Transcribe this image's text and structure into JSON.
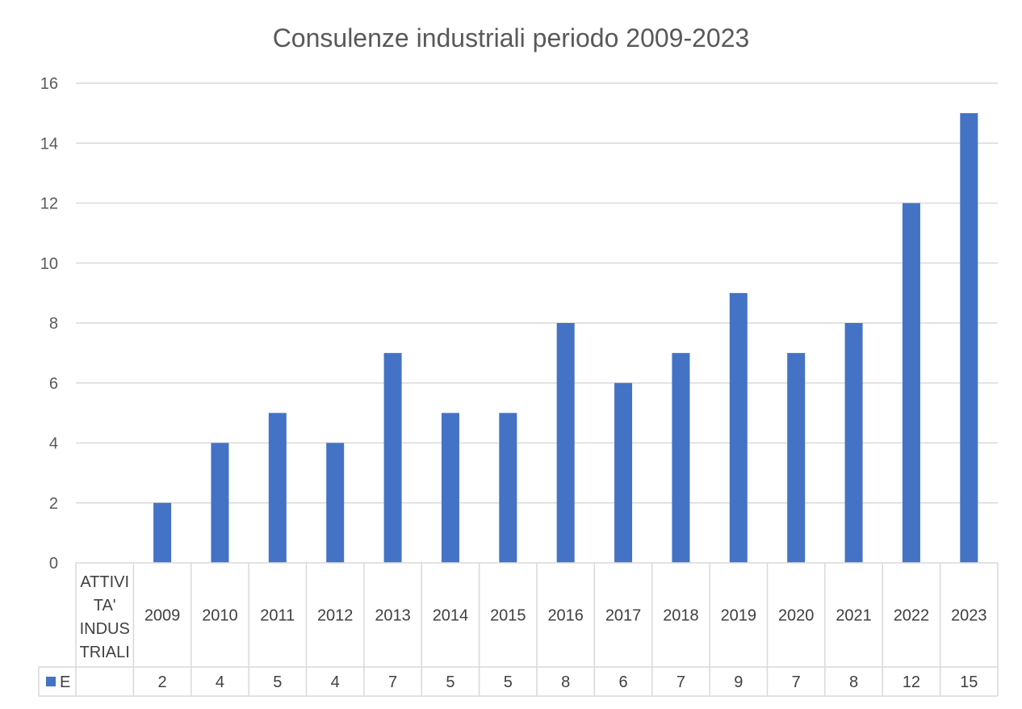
{
  "chart_data": {
    "type": "bar",
    "title": "Consulenze industriali periodo 2009-2023",
    "first_category_label": [
      "ATTIVI",
      "TA'",
      "INDUS",
      "TRIALI"
    ],
    "categories": [
      "2009",
      "2010",
      "2011",
      "2012",
      "2013",
      "2014",
      "2015",
      "2016",
      "2017",
      "2018",
      "2019",
      "2020",
      "2021",
      "2022",
      "2023"
    ],
    "series": [
      {
        "name": "E",
        "values": [
          2,
          4,
          5,
          4,
          7,
          5,
          5,
          8,
          6,
          7,
          9,
          7,
          8,
          12,
          15
        ],
        "color": "#4472c4"
      }
    ],
    "ylim": [
      0,
      16
    ],
    "yticks": [
      "0",
      "2",
      "4",
      "6",
      "8",
      "10",
      "12",
      "14",
      "16"
    ],
    "grid": true,
    "legend": "data-table"
  }
}
